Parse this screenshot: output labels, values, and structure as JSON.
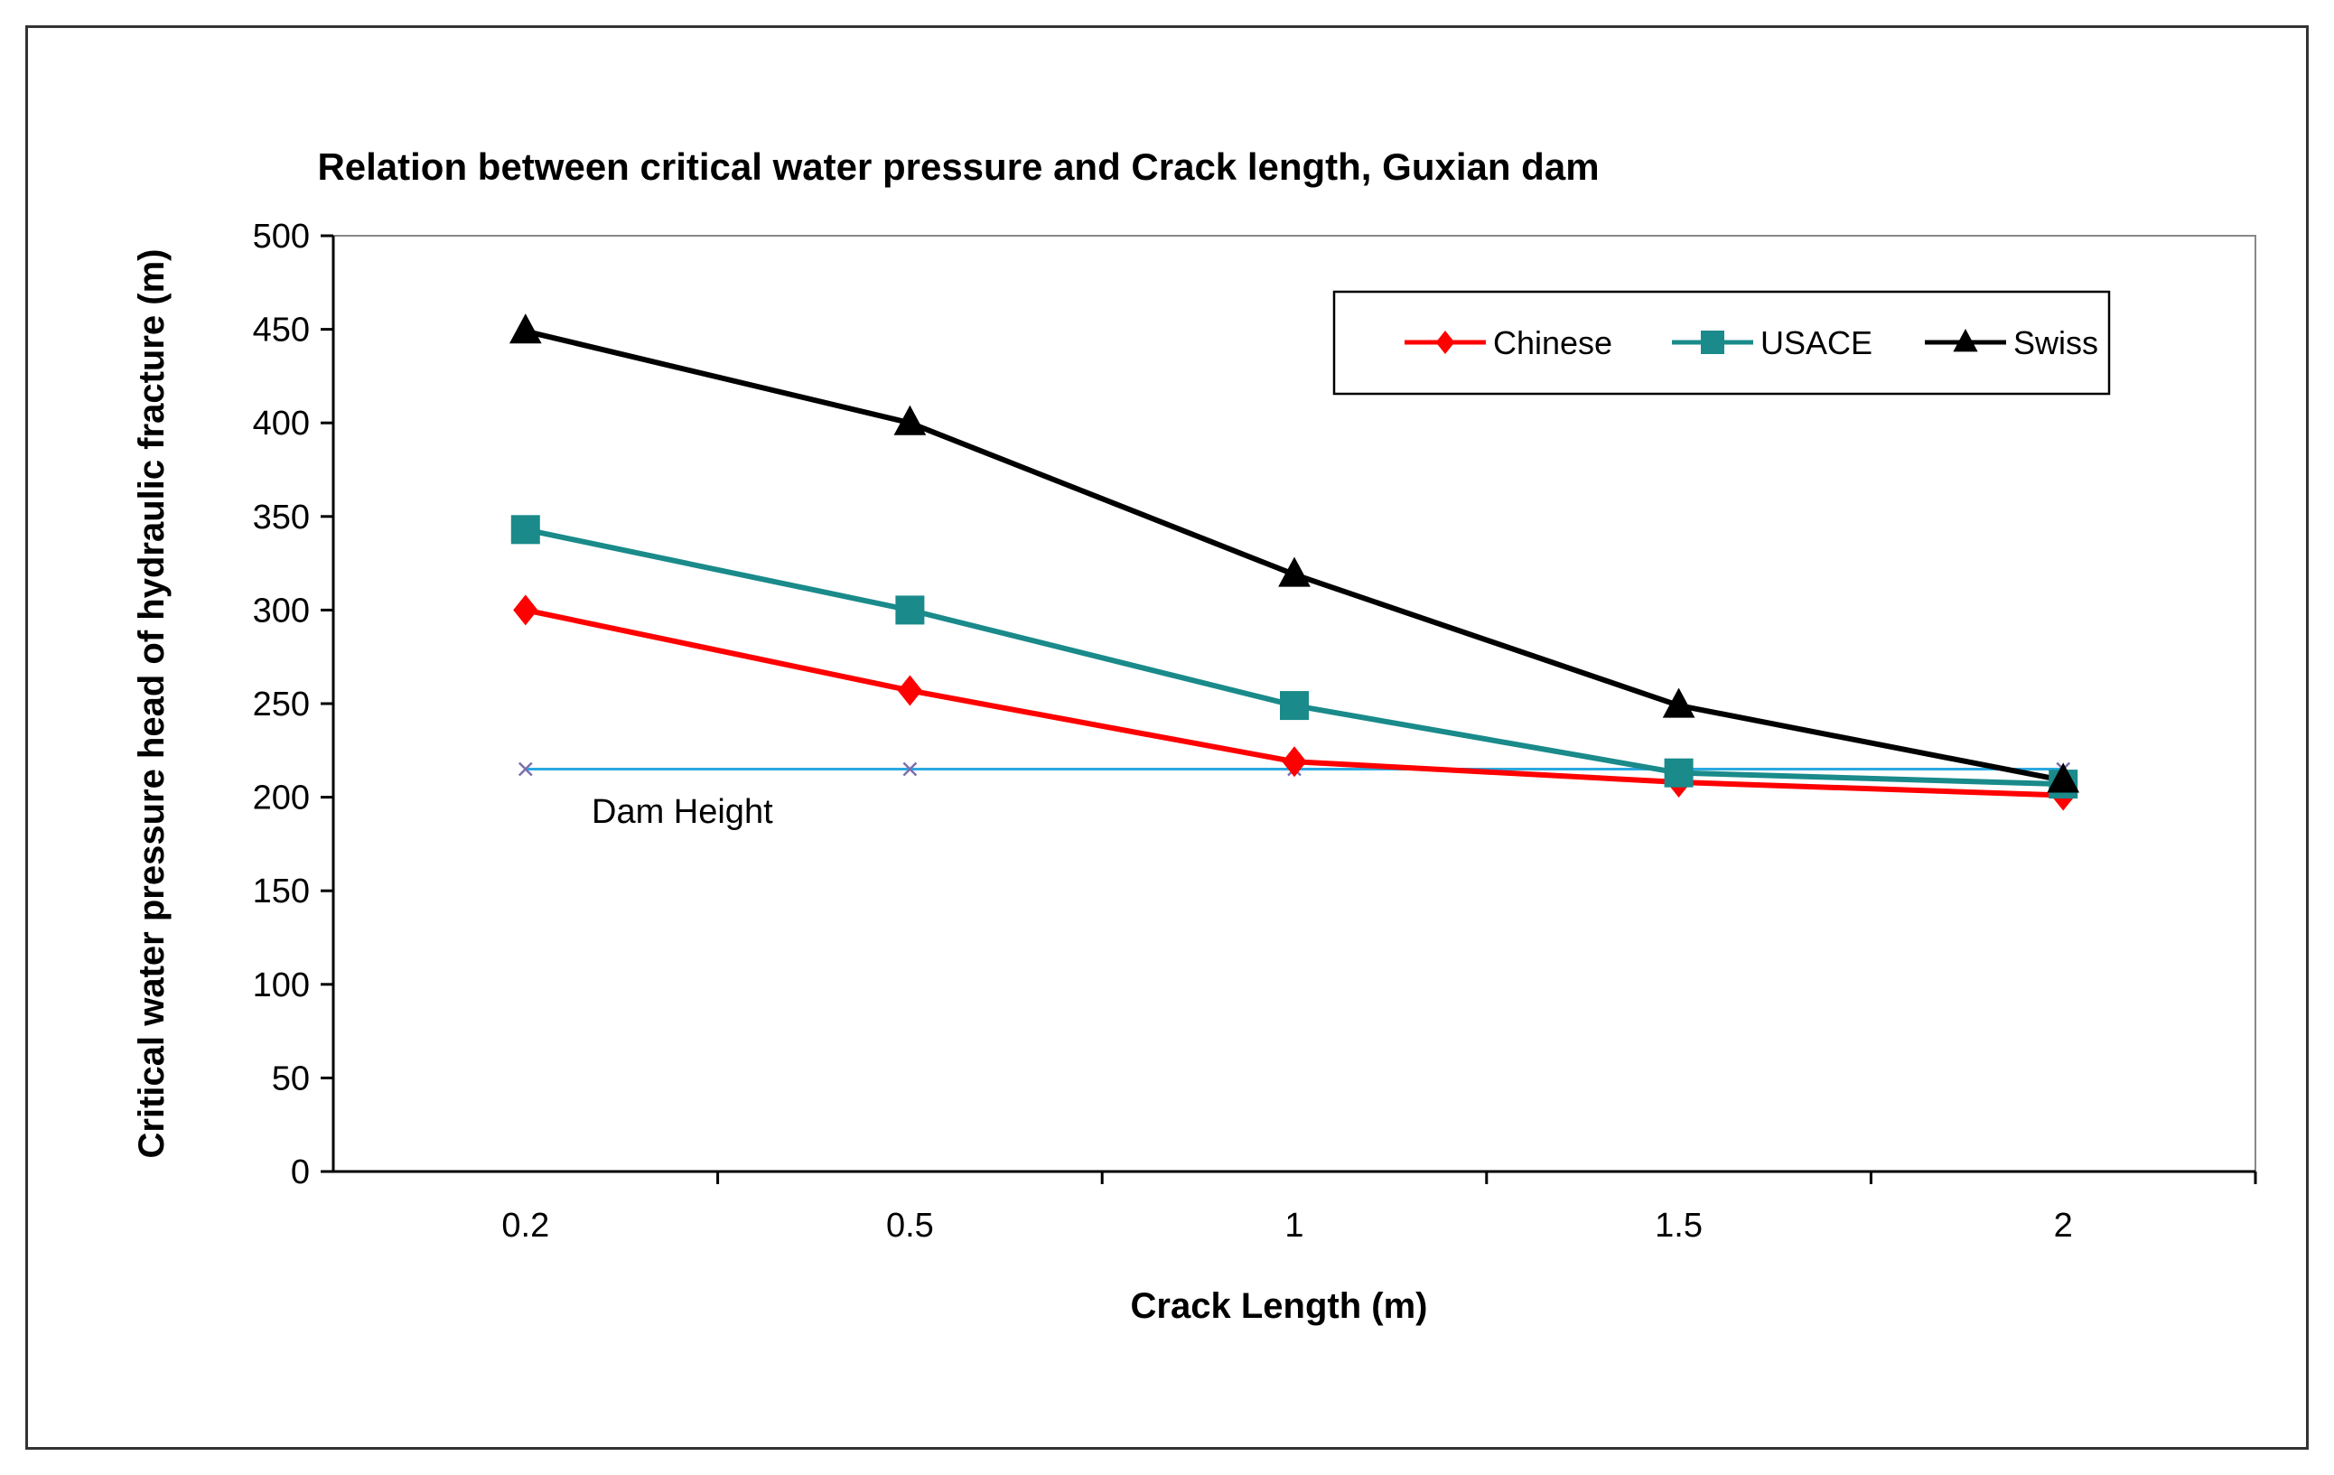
{
  "chart_data": {
    "type": "line",
    "title": "Relation between critical water pressure and Crack length, Guxian dam",
    "xlabel": "Crack Length (m)",
    "ylabel": "Critical water pressure head of hydraulic fracture (m)",
    "categories": [
      "0.2",
      "0.5",
      "1",
      "1.5",
      "2"
    ],
    "ylim": [
      0,
      500
    ],
    "yticks": [
      0,
      50,
      100,
      150,
      200,
      250,
      300,
      350,
      400,
      450,
      500
    ],
    "grid": false,
    "legend_position": "top-right",
    "series": [
      {
        "name": "Chinese",
        "values": [
          300,
          257,
          219,
          208,
          201
        ],
        "color": "#ff0000",
        "marker": "diamond"
      },
      {
        "name": "USACE",
        "values": [
          343,
          300,
          249,
          213,
          207
        ],
        "color": "#1a8a8a",
        "marker": "square"
      },
      {
        "name": "Swiss",
        "values": [
          449,
          400,
          319,
          249,
          209
        ],
        "color": "#000000",
        "marker": "triangle"
      },
      {
        "name": "Dam Height",
        "values": [
          215,
          215,
          215,
          215,
          215
        ],
        "color": "#29a9e0",
        "marker": "x",
        "in_legend": false
      }
    ],
    "annotations": [
      {
        "text": "Dam Height",
        "near_series": "Dam Height"
      }
    ]
  }
}
